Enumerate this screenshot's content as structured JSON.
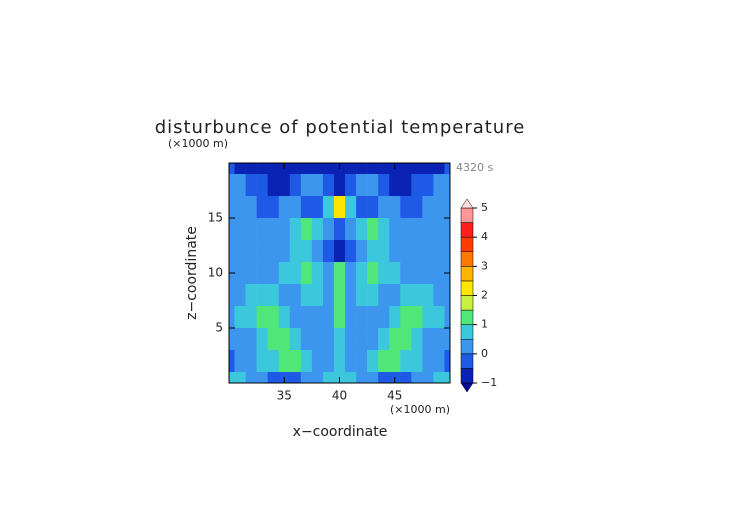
{
  "chart_data": {
    "type": "contourf",
    "title": "disturbunce of potential temperature",
    "x_label": "x−coordinate",
    "y_label": "z−coordinate",
    "x_unit": "(×1000 m)",
    "y_unit": "(×1000 m)",
    "time_label": "4320 s",
    "xlim": [
      30,
      50
    ],
    "ylim": [
      0,
      20
    ],
    "xticks": [
      35,
      40,
      45
    ],
    "yticks": [
      5,
      10,
      15
    ],
    "x": [
      30,
      31,
      32,
      33,
      34,
      35,
      36,
      37,
      38,
      39,
      40,
      41,
      42,
      43,
      44,
      45,
      46,
      47,
      48,
      49,
      50
    ],
    "z": [
      20,
      18,
      16,
      14,
      12,
      10,
      8,
      6,
      4,
      2,
      0
    ],
    "values": [
      [
        -0.3,
        -0.6,
        -0.7,
        -0.7,
        -0.7,
        -0.7,
        -0.7,
        -0.7,
        -0.8,
        -0.8,
        -0.8,
        -0.8,
        -0.8,
        -0.7,
        -0.7,
        -0.7,
        -0.7,
        -0.7,
        -0.7,
        -0.6,
        -0.3
      ],
      [
        0.2,
        0.2,
        -0.2,
        -0.2,
        -0.7,
        -0.7,
        -0.3,
        0.3,
        0.2,
        -0.3,
        -0.6,
        -0.3,
        0.2,
        0.3,
        -0.3,
        -0.7,
        -0.7,
        -0.2,
        -0.2,
        0.2,
        0.2
      ],
      [
        0.3,
        0.3,
        0.3,
        -0.2,
        -0.3,
        0.2,
        0.3,
        -0.2,
        -0.3,
        0.8,
        2.2,
        0.8,
        -0.3,
        -0.2,
        0.3,
        0.2,
        -0.3,
        -0.2,
        0.3,
        0.3,
        0.3
      ],
      [
        0.2,
        0.2,
        0.3,
        0.3,
        0.2,
        0.3,
        0.6,
        1.3,
        0.8,
        0.2,
        -0.3,
        0.2,
        0.8,
        1.3,
        0.6,
        0.3,
        0.2,
        0.3,
        0.3,
        0.2,
        0.2
      ],
      [
        0.3,
        0.3,
        0.2,
        0.3,
        0.3,
        0.4,
        0.8,
        0.6,
        0.3,
        -0.2,
        -0.6,
        -0.2,
        0.3,
        0.6,
        0.8,
        0.4,
        0.3,
        0.3,
        0.2,
        0.3,
        0.3
      ],
      [
        0.2,
        0.3,
        0.3,
        0.3,
        0.4,
        0.7,
        0.8,
        1.1,
        0.7,
        0.3,
        1.2,
        0.3,
        0.7,
        1.1,
        0.8,
        0.7,
        0.4,
        0.3,
        0.3,
        0.3,
        0.2
      ],
      [
        0.3,
        0.4,
        0.6,
        0.8,
        0.7,
        0.4,
        0.3,
        0.6,
        0.8,
        0.3,
        1.3,
        0.3,
        0.8,
        0.6,
        0.3,
        0.4,
        0.7,
        0.8,
        0.6,
        0.4,
        0.3
      ],
      [
        0.3,
        0.6,
        0.9,
        1.3,
        1.1,
        0.7,
        0.3,
        0.3,
        0.4,
        0.3,
        1.3,
        0.3,
        0.4,
        0.3,
        0.3,
        0.7,
        1.1,
        1.3,
        0.9,
        0.6,
        0.3
      ],
      [
        0.2,
        0.3,
        0.4,
        0.8,
        1.1,
        1.2,
        0.7,
        0.4,
        0.3,
        0.4,
        0.9,
        0.4,
        0.3,
        0.4,
        0.7,
        1.2,
        1.1,
        0.8,
        0.4,
        0.3,
        0.2
      ],
      [
        -0.3,
        0.3,
        0.4,
        0.6,
        0.8,
        1.0,
        1.1,
        0.7,
        0.3,
        0.4,
        0.8,
        0.4,
        0.3,
        0.7,
        1.1,
        1.0,
        0.8,
        0.6,
        0.4,
        0.3,
        -0.3
      ],
      [
        0.7,
        0.8,
        0.4,
        0.3,
        -0.3,
        -0.3,
        -0.3,
        0.3,
        0.4,
        0.5,
        0.5,
        0.5,
        0.4,
        0.3,
        -0.3,
        -0.3,
        -0.3,
        0.3,
        0.4,
        0.8,
        0.7
      ]
    ],
    "levels": [
      -1,
      -0.5,
      0,
      0.5,
      1,
      1.5,
      2,
      2.5,
      3,
      3.5,
      4,
      4.5,
      5
    ],
    "colorbar_ticks": [
      {
        "value": -1,
        "label": "−1"
      },
      0,
      1,
      2,
      3,
      4,
      5
    ],
    "colors": [
      "#0a23b4",
      "#1e5ae6",
      "#3c96ee",
      "#3cc8dc",
      "#50e678",
      "#c8f03c",
      "#ffe600",
      "#ffb400",
      "#ff7800",
      "#ff3c00",
      "#ff1e1e",
      "#ff9696"
    ],
    "under_color": "#000090",
    "over_color": "#ffdcdc"
  }
}
